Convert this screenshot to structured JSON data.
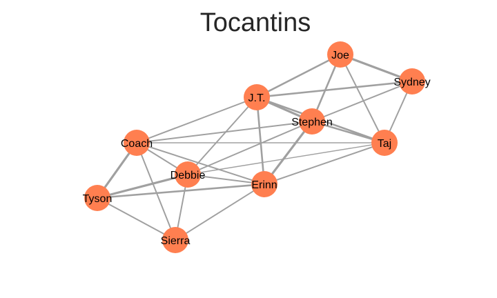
{
  "title": "Tocantins",
  "colors": {
    "node": "#ff7f50",
    "edge": "#a0a0a0",
    "background": "#ffffff",
    "title": "#262626"
  },
  "nodes": [
    {
      "id": "joe",
      "label": "Joe"
    },
    {
      "id": "sydney",
      "label": "Sydney"
    },
    {
      "id": "jt",
      "label": "J.T."
    },
    {
      "id": "stephen",
      "label": "Stephen"
    },
    {
      "id": "taj",
      "label": "Taj"
    },
    {
      "id": "coach",
      "label": "Coach"
    },
    {
      "id": "debbie",
      "label": "Debbie"
    },
    {
      "id": "erinn",
      "label": "Erinn"
    },
    {
      "id": "tyson",
      "label": "Tyson"
    },
    {
      "id": "sierra",
      "label": "Sierra"
    }
  ],
  "edges": [
    {
      "source": "joe",
      "target": "sydney",
      "weight": 4
    },
    {
      "source": "joe",
      "target": "jt",
      "weight": 3
    },
    {
      "source": "joe",
      "target": "stephen",
      "weight": 3
    },
    {
      "source": "joe",
      "target": "taj",
      "weight": 2
    },
    {
      "source": "sydney",
      "target": "jt",
      "weight": 3
    },
    {
      "source": "sydney",
      "target": "stephen",
      "weight": 2
    },
    {
      "source": "sydney",
      "target": "taj",
      "weight": 2
    },
    {
      "source": "jt",
      "target": "stephen",
      "weight": 4
    },
    {
      "source": "jt",
      "target": "taj",
      "weight": 3
    },
    {
      "source": "jt",
      "target": "coach",
      "weight": 2
    },
    {
      "source": "jt",
      "target": "debbie",
      "weight": 2
    },
    {
      "source": "jt",
      "target": "erinn",
      "weight": 3
    },
    {
      "source": "stephen",
      "target": "taj",
      "weight": 3
    },
    {
      "source": "stephen",
      "target": "erinn",
      "weight": 4
    },
    {
      "source": "stephen",
      "target": "coach",
      "weight": 2
    },
    {
      "source": "stephen",
      "target": "debbie",
      "weight": 2
    },
    {
      "source": "taj",
      "target": "coach",
      "weight": 1
    },
    {
      "source": "taj",
      "target": "debbie",
      "weight": 1
    },
    {
      "source": "taj",
      "target": "erinn",
      "weight": 2
    },
    {
      "source": "coach",
      "target": "tyson",
      "weight": 4
    },
    {
      "source": "coach",
      "target": "debbie",
      "weight": 2
    },
    {
      "source": "coach",
      "target": "erinn",
      "weight": 2
    },
    {
      "source": "coach",
      "target": "sierra",
      "weight": 2
    },
    {
      "source": "tyson",
      "target": "debbie",
      "weight": 4
    },
    {
      "source": "tyson",
      "target": "erinn",
      "weight": 3
    },
    {
      "source": "tyson",
      "target": "sierra",
      "weight": 2
    },
    {
      "source": "debbie",
      "target": "erinn",
      "weight": 2
    },
    {
      "source": "debbie",
      "target": "sierra",
      "weight": 2
    },
    {
      "source": "erinn",
      "target": "sierra",
      "weight": 2
    }
  ]
}
